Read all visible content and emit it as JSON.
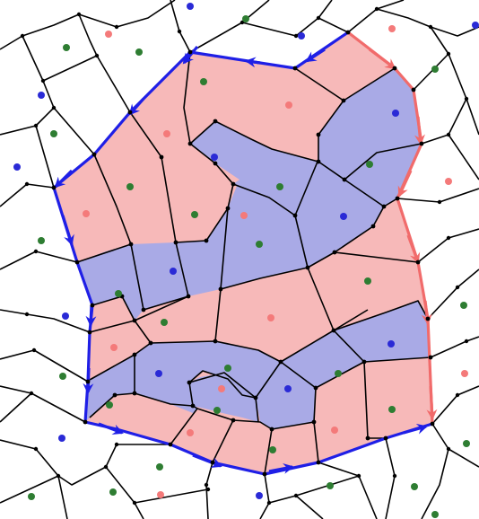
{
  "colors": {
    "background": "#ffffff",
    "region_red_fill": "#f7b9b9",
    "region_blue_fill": "#a9aae6",
    "edge": "#000000",
    "dot_red": "#f47a7a",
    "dot_blue": "#2a2ad6",
    "dot_green": "#2e7d32",
    "boundary_blue": "#1f1fe6",
    "boundary_red": "#f16b6b"
  },
  "legend": {
    "dot_colors": [
      "red",
      "blue",
      "green"
    ],
    "boundary_colors": [
      "blue",
      "red"
    ]
  }
}
